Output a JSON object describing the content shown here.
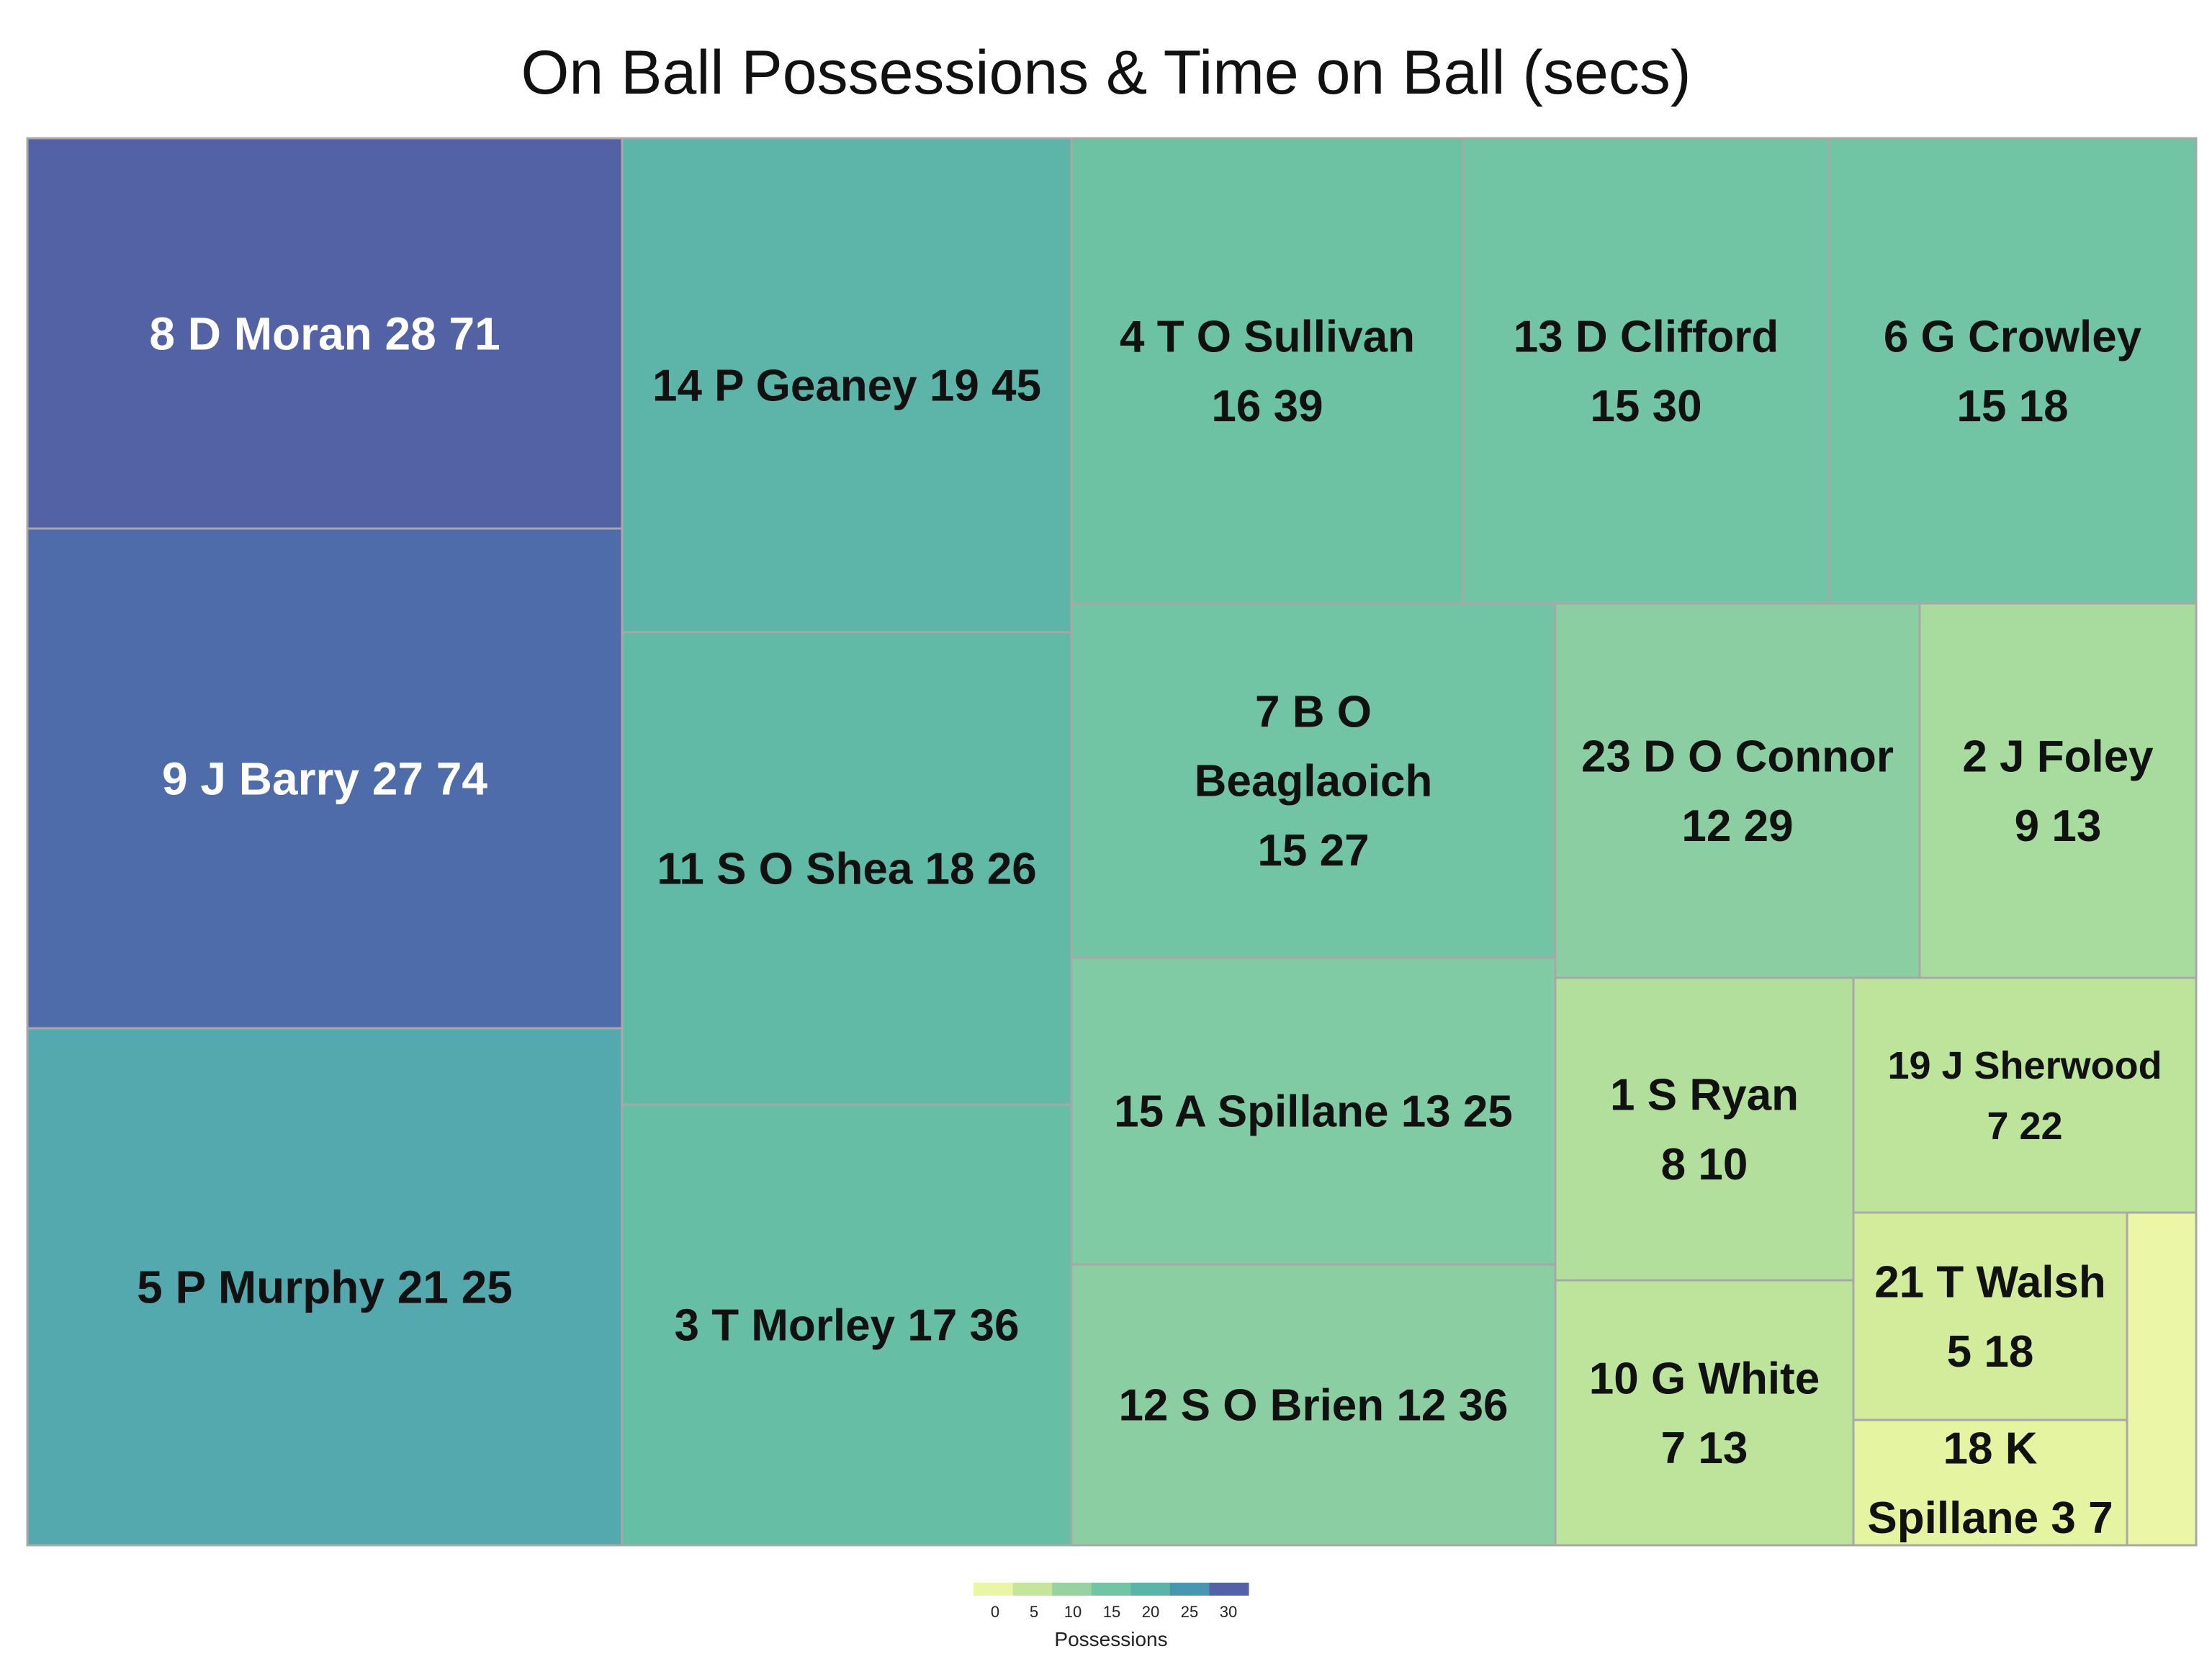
{
  "chart_data": {
    "type": "treemap",
    "title": "On Ball Possessions & Time on Ball (secs)",
    "size_metric": "Possessions",
    "color_metric": "Possessions",
    "tiles": [
      {
        "label": "8 D Moran 28 71",
        "player": "8 D Moran",
        "possessions": 28,
        "time_on_ball": 71
      },
      {
        "label": "9 J Barry 27 74",
        "player": "9 J Barry",
        "possessions": 27,
        "time_on_ball": 74
      },
      {
        "label": "5 P Murphy 21 25",
        "player": "5 P Murphy",
        "possessions": 21,
        "time_on_ball": 25
      },
      {
        "label": "14 P Geaney 19 45",
        "player": "14 P Geaney",
        "possessions": 19,
        "time_on_ball": 45
      },
      {
        "label": "11 S O Shea 18 26",
        "player": "11 S O Shea",
        "possessions": 18,
        "time_on_ball": 26
      },
      {
        "label": "3 T Morley 17 36",
        "player": "3 T Morley",
        "possessions": 17,
        "time_on_ball": 36
      },
      {
        "label": "4 T O Sullivan 16 39",
        "player": "4 T O Sullivan",
        "possessions": 16,
        "time_on_ball": 39
      },
      {
        "label": "13 D Clifford 15 30",
        "player": "13 D Clifford",
        "possessions": 15,
        "time_on_ball": 30
      },
      {
        "label": "6 G Crowley 15 18",
        "player": "6 G Crowley",
        "possessions": 15,
        "time_on_ball": 18
      },
      {
        "label": "7 B O Beaglaoich 15 27",
        "player": "7 B O Beaglaoich",
        "possessions": 15,
        "time_on_ball": 27
      },
      {
        "label": "15 A Spillane 13 25",
        "player": "15 A Spillane",
        "possessions": 13,
        "time_on_ball": 25
      },
      {
        "label": "12 S O Brien 12 36",
        "player": "12 S O Brien",
        "possessions": 12,
        "time_on_ball": 36
      },
      {
        "label": "23 D O Connor 12 29",
        "player": "23 D O Connor",
        "possessions": 12,
        "time_on_ball": 29
      },
      {
        "label": "2 J Foley 9 13",
        "player": "2 J Foley",
        "possessions": 9,
        "time_on_ball": 13
      },
      {
        "label": "1 S Ryan 8 10",
        "player": "1 S Ryan",
        "possessions": 8,
        "time_on_ball": 10
      },
      {
        "label": "19 J Sherwood 7 22",
        "player": "19 J Sherwood",
        "possessions": 7,
        "time_on_ball": 22
      },
      {
        "label": "10 G White 7 13",
        "player": "10 G White",
        "possessions": 7,
        "time_on_ball": 13
      },
      {
        "label": "21 T Walsh 5 18",
        "player": "21 T Walsh",
        "possessions": 5,
        "time_on_ball": 18
      },
      {
        "label": "18 K Spillane 3 7",
        "player": "18 K Spillane",
        "possessions": 3,
        "time_on_ball": 7
      },
      {
        "label": "",
        "player": "",
        "possessions": 2,
        "time_on_ball": null
      }
    ],
    "legend": {
      "title": "Possessions",
      "placement": "bottom-center",
      "ticks": [
        0,
        5,
        10,
        15,
        20,
        25,
        30
      ],
      "range": [
        0,
        30
      ],
      "colors": [
        "#f7fcb1",
        "#e3f39e",
        "#c1e59a",
        "#9dd6a0",
        "#7dc9a4",
        "#67c1a3",
        "#58b0ab",
        "#4699b3",
        "#4d6fab",
        "#5b4b9d"
      ]
    }
  }
}
